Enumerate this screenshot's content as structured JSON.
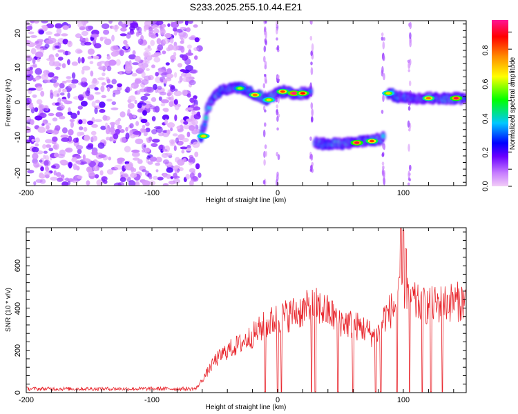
{
  "title": "S233.2025.255.10.44.E21",
  "chart_data": [
    {
      "type": "heatmap",
      "xlabel": "Height of straight line (km)",
      "ylabel": "Frequency (Hz)",
      "xlim": [
        -200,
        150
      ],
      "ylim": [
        -25,
        25
      ],
      "x_ticks": [
        "-200",
        "-100",
        "0",
        "100"
      ],
      "y_ticks": [
        "-20",
        "-10",
        "0",
        "10",
        "20"
      ],
      "colorbar": {
        "label": "Normalized spectral amplitude",
        "range": [
          0,
          1
        ],
        "ticks": [
          "0.0",
          "0.2",
          "0.4",
          "0.6",
          "0.8"
        ],
        "colors": [
          "#e6a8f0",
          "#8a2be2",
          "#0000ff",
          "#00c8ff",
          "#00ff00",
          "#ffff00",
          "#ff8c00",
          "#ff0000",
          "#ff1493"
        ]
      },
      "noise_region": {
        "x": [
          -200,
          -62
        ],
        "y": [
          -25,
          25
        ]
      },
      "track": [
        {
          "x": -61,
          "y": -10
        },
        {
          "x": -58,
          "y": -6
        },
        {
          "x": -56,
          "y": -2
        },
        {
          "x": -52,
          "y": 1
        },
        {
          "x": -48,
          "y": 3
        },
        {
          "x": -42,
          "y": 4
        },
        {
          "x": -35,
          "y": 4.5
        },
        {
          "x": -30,
          "y": 5
        },
        {
          "x": -25,
          "y": 4
        },
        {
          "x": -20,
          "y": 3
        },
        {
          "x": -14,
          "y": 2
        },
        {
          "x": -8,
          "y": 1
        },
        {
          "x": -5,
          "y": 2
        },
        {
          "x": 0,
          "y": 3
        },
        {
          "x": 5,
          "y": 3.5
        },
        {
          "x": 10,
          "y": 3
        },
        {
          "x": 15,
          "y": 3
        },
        {
          "x": 20,
          "y": 3
        },
        {
          "x": 26,
          "y": 3
        },
        {
          "x": 30,
          "y": -12
        },
        {
          "x": 40,
          "y": -12.5
        },
        {
          "x": 50,
          "y": -12.3
        },
        {
          "x": 60,
          "y": -12
        },
        {
          "x": 70,
          "y": -11.5
        },
        {
          "x": 80,
          "y": -11
        },
        {
          "x": 84,
          "y": -10.5
        },
        {
          "x": 88,
          "y": 3
        },
        {
          "x": 95,
          "y": 2
        },
        {
          "x": 105,
          "y": 1.5
        },
        {
          "x": 115,
          "y": 1.5
        },
        {
          "x": 125,
          "y": 1.5
        },
        {
          "x": 135,
          "y": 1.5
        },
        {
          "x": 145,
          "y": 1.5
        },
        {
          "x": 150,
          "y": 1.5
        }
      ],
      "hotspots": [
        {
          "x": -59,
          "y": -10,
          "amp": 0.7
        },
        {
          "x": -30,
          "y": 4.5,
          "amp": 0.6
        },
        {
          "x": -18,
          "y": 2.5,
          "amp": 0.8
        },
        {
          "x": -7,
          "y": 1,
          "amp": 0.7
        },
        {
          "x": 4,
          "y": 3.5,
          "amp": 0.85
        },
        {
          "x": 13,
          "y": 3,
          "amp": 1.0
        },
        {
          "x": 20,
          "y": 3,
          "amp": 0.9
        },
        {
          "x": 63,
          "y": -12,
          "amp": 0.95
        },
        {
          "x": 75,
          "y": -11.5,
          "amp": 0.85
        },
        {
          "x": 88,
          "y": 3,
          "amp": 0.7
        },
        {
          "x": 120,
          "y": 1.5,
          "amp": 0.8
        },
        {
          "x": 142,
          "y": 1.5,
          "amp": 0.95
        }
      ],
      "vertical_streaks": [
        -10,
        0,
        27,
        84,
        105
      ]
    },
    {
      "type": "line",
      "xlabel": "Height of straight line (km)",
      "ylabel": "SNR (10 * v/v)",
      "xlim": [
        -200,
        150
      ],
      "ylim": [
        0,
        780
      ],
      "x_ticks": [
        "-200",
        "-100",
        "0",
        "100"
      ],
      "y_ticks": [
        "0",
        "200",
        "400",
        "600"
      ],
      "series": [
        {
          "color": "#e8232a",
          "envelope": [
            {
              "x": -200,
              "y": 18
            },
            {
              "x": -150,
              "y": 18
            },
            {
              "x": -100,
              "y": 18
            },
            {
              "x": -65,
              "y": 18
            },
            {
              "x": -60,
              "y": 60
            },
            {
              "x": -50,
              "y": 150
            },
            {
              "x": -40,
              "y": 200
            },
            {
              "x": -30,
              "y": 230
            },
            {
              "x": -20,
              "y": 270
            },
            {
              "x": -10,
              "y": 320
            },
            {
              "x": 0,
              "y": 350
            },
            {
              "x": 10,
              "y": 370
            },
            {
              "x": 20,
              "y": 390
            },
            {
              "x": 30,
              "y": 410
            },
            {
              "x": 40,
              "y": 380
            },
            {
              "x": 50,
              "y": 340
            },
            {
              "x": 60,
              "y": 320
            },
            {
              "x": 70,
              "y": 300
            },
            {
              "x": 78,
              "y": 260
            },
            {
              "x": 85,
              "y": 360
            },
            {
              "x": 95,
              "y": 420
            },
            {
              "x": 100,
              "y": 500
            },
            {
              "x": 110,
              "y": 420
            },
            {
              "x": 120,
              "y": 410
            },
            {
              "x": 130,
              "y": 420
            },
            {
              "x": 140,
              "y": 430
            },
            {
              "x": 150,
              "y": 430
            }
          ],
          "dropouts": [
            -10,
            0,
            3,
            27,
            30,
            48,
            60,
            78,
            82,
            95,
            105,
            115,
            122,
            131
          ],
          "spikes": [
            {
              "x": 98,
              "y": 780
            },
            {
              "x": 100,
              "y": 770
            },
            {
              "x": 102,
              "y": 680
            }
          ]
        }
      ]
    }
  ]
}
